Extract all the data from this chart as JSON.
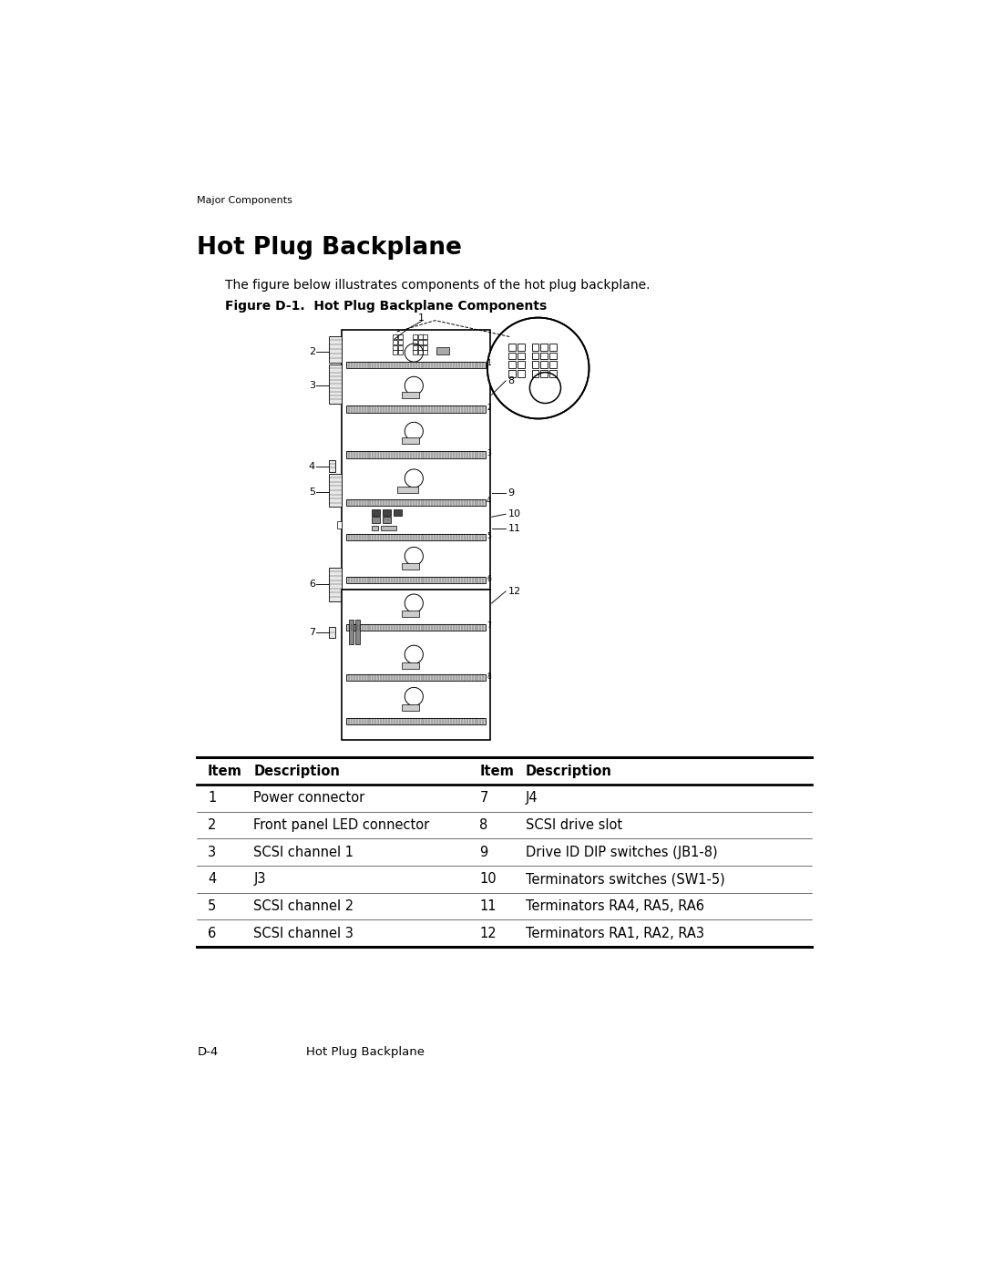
{
  "page_title": "Major Components",
  "section_title": "Hot Plug Backplane",
  "intro_text": "The figure below illustrates components of the hot plug backplane.",
  "figure_caption": "Figure D-1.  Hot Plug Backplane Components",
  "footer_left": "D-4",
  "footer_right": "Hot Plug Backplane",
  "table_headers": [
    "Item",
    "Description",
    "Item",
    "Description"
  ],
  "table_rows": [
    [
      "1",
      "Power connector",
      "7",
      "J4"
    ],
    [
      "2",
      "Front panel LED connector",
      "8",
      "SCSI drive slot"
    ],
    [
      "3",
      "SCSI channel 1",
      "9",
      "Drive ID DIP switches (JB1-8)"
    ],
    [
      "4",
      "J3",
      "10",
      "Terminators switches (SW1-5)"
    ],
    [
      "5",
      "SCSI channel 2",
      "11",
      "Terminators RA4, RA5, RA6"
    ],
    [
      "6",
      "SCSI channel 3",
      "12",
      "Terminators RA1, RA2, RA3"
    ]
  ],
  "bg_color": "#ffffff",
  "text_color": "#000000",
  "line_color": "#000000",
  "page_width": 10.8,
  "page_height": 13.97
}
